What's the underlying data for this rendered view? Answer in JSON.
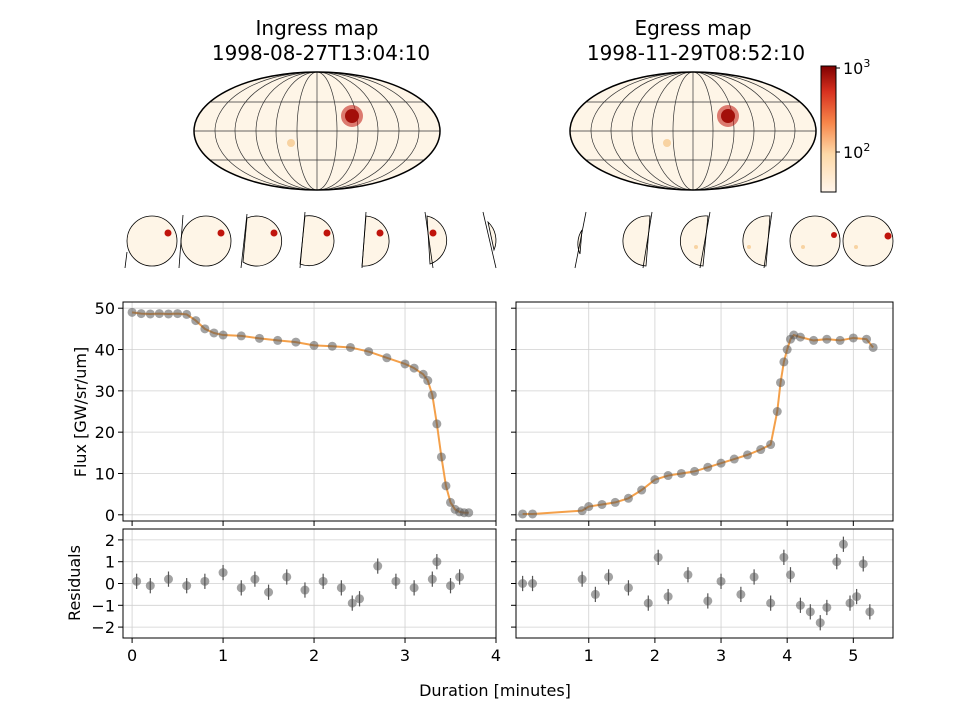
{
  "figure": {
    "ingress_title": "Ingress map",
    "ingress_date": "1998-08-27T13:04:10",
    "egress_title": "Egress map",
    "egress_date": "1998-11-29T08:52:10",
    "colorbar": {
      "scale": "log",
      "tick_top": "10",
      "tick_top_exp": "3",
      "tick_mid": "10",
      "tick_mid_exp": "2"
    },
    "colors": {
      "data": "#555555",
      "model": "#f4a04a",
      "map_base": "#fef5e7",
      "spot": "#c0140c"
    }
  },
  "chart_data": [
    {
      "type": "scatter",
      "name": "ingress-flux",
      "ylabel": "Flux [GW/sr/um]",
      "xlim": [
        -0.1,
        4.0
      ],
      "ylim": [
        -1.5,
        51.5
      ],
      "xticks": [
        "0",
        "1",
        "2",
        "3",
        "4"
      ],
      "yticks": [
        "0",
        "10",
        "20",
        "30",
        "40",
        "50"
      ],
      "grid": true,
      "x": [
        0.0,
        0.1,
        0.2,
        0.3,
        0.4,
        0.5,
        0.6,
        0.7,
        0.8,
        0.9,
        1.0,
        1.2,
        1.4,
        1.6,
        1.8,
        2.0,
        2.2,
        2.4,
        2.6,
        2.8,
        3.0,
        3.1,
        3.2,
        3.25,
        3.3,
        3.35,
        3.4,
        3.45,
        3.5,
        3.55,
        3.6,
        3.65,
        3.7
      ],
      "y": [
        49,
        48.7,
        48.6,
        48.7,
        48.6,
        48.7,
        48.5,
        47,
        45,
        44,
        43.5,
        43.3,
        42.7,
        42.2,
        41.8,
        41,
        40.8,
        40.5,
        39.5,
        38,
        36.5,
        35.5,
        34,
        32.5,
        29,
        22,
        14,
        7,
        3,
        1.3,
        0.7,
        0.5,
        0.5
      ]
    },
    {
      "type": "scatter",
      "name": "egress-flux",
      "xlim": [
        -0.1,
        5.6
      ],
      "ylim": [
        -1.5,
        51.5
      ],
      "xticks": [
        "1",
        "2",
        "3",
        "4",
        "5"
      ],
      "grid": true,
      "x": [
        0.0,
        0.15,
        0.9,
        1.0,
        1.2,
        1.4,
        1.6,
        1.8,
        2.0,
        2.2,
        2.4,
        2.6,
        2.8,
        3.0,
        3.2,
        3.4,
        3.6,
        3.75,
        3.85,
        3.9,
        3.95,
        4.0,
        4.05,
        4.1,
        4.2,
        4.4,
        4.6,
        4.8,
        5.0,
        5.2,
        5.3
      ],
      "y": [
        0.2,
        0.2,
        1,
        2,
        2.5,
        3,
        4,
        6,
        8.5,
        9.5,
        10,
        10.5,
        11.5,
        12.5,
        13.5,
        14.5,
        15.8,
        17,
        25,
        32,
        37,
        40,
        42.5,
        43.5,
        43,
        42.2,
        42.5,
        42.2,
        42.8,
        42.5,
        40.5
      ]
    },
    {
      "type": "scatter",
      "name": "ingress-residuals",
      "ylabel": "Residuals",
      "xlim": [
        -0.1,
        4.0
      ],
      "ylim": [
        -2.5,
        2.5
      ],
      "xticks": [
        "0",
        "1",
        "2",
        "3",
        "4"
      ],
      "yticks": [
        "−2",
        "−1",
        "0",
        "1",
        "2"
      ],
      "grid": true,
      "x": [
        0.05,
        0.2,
        0.4,
        0.6,
        0.8,
        1.0,
        1.2,
        1.35,
        1.5,
        1.7,
        1.9,
        2.1,
        2.3,
        2.42,
        2.5,
        2.7,
        2.9,
        3.1,
        3.3,
        3.35,
        3.5,
        3.6
      ],
      "y": [
        0.1,
        -0.1,
        0.2,
        -0.1,
        0.1,
        0.5,
        -0.2,
        0.2,
        -0.4,
        0.3,
        -0.3,
        0.1,
        -0.2,
        -0.9,
        -0.7,
        0.8,
        0.1,
        -0.2,
        0.2,
        1.0,
        -0.1,
        0.3
      ]
    },
    {
      "type": "scatter",
      "name": "egress-residuals",
      "xlim": [
        -0.1,
        5.6
      ],
      "ylim": [
        -2.5,
        2.5
      ],
      "xticks": [
        "1",
        "2",
        "3",
        "4",
        "5"
      ],
      "grid": true,
      "x": [
        0.0,
        0.15,
        0.9,
        1.1,
        1.3,
        1.6,
        1.9,
        2.05,
        2.2,
        2.5,
        2.8,
        3.0,
        3.3,
        3.5,
        3.75,
        3.95,
        4.05,
        4.2,
        4.35,
        4.5,
        4.6,
        4.75,
        4.85,
        4.95,
        5.05,
        5.15,
        5.25
      ],
      "y": [
        0.0,
        0.0,
        0.2,
        -0.5,
        0.3,
        -0.2,
        -0.9,
        1.2,
        -0.6,
        0.4,
        -0.8,
        0.1,
        -0.5,
        0.3,
        -0.9,
        1.2,
        0.4,
        -1.0,
        -1.3,
        -1.8,
        -1.1,
        1.0,
        1.8,
        -0.9,
        -0.6,
        0.9,
        -1.3
      ]
    }
  ]
}
